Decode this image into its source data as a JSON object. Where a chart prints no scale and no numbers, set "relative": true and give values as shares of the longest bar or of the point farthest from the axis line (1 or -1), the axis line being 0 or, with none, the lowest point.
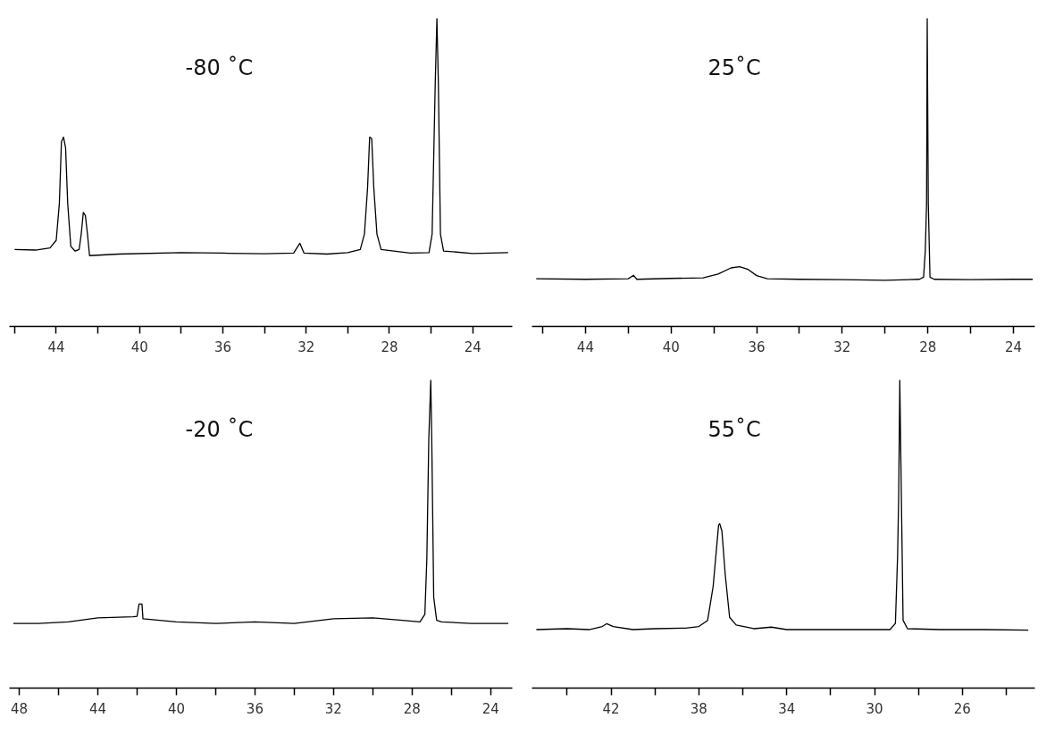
{
  "chart_data": [
    {
      "type": "line",
      "title": "-80 ˚C",
      "relative": true,
      "tick_labels": "x",
      "xlim": [
        46.25,
        22.1
      ],
      "xticks": [
        {
          "value": 46,
          "label": null
        },
        44,
        {
          "value": 42,
          "label": null
        },
        40,
        {
          "value": 38,
          "label": null
        },
        36,
        {
          "value": 34,
          "label": null
        },
        32,
        {
          "value": 30,
          "label": null
        },
        28,
        {
          "value": 26,
          "label": null
        },
        24
      ],
      "series": [
        {
          "color": "#000000",
          "x": [
            46.0,
            45.0,
            44.3,
            44.0,
            43.85,
            43.75,
            43.65,
            43.55,
            43.45,
            43.3,
            43.1,
            42.9,
            42.8,
            42.7,
            42.6,
            42.5,
            42.4,
            41.0,
            38.0,
            36.0,
            34.0,
            32.6,
            32.3,
            32.1,
            31.0,
            30.0,
            29.4,
            29.2,
            29.05,
            28.95,
            28.85,
            28.75,
            28.6,
            28.4,
            27.0,
            26.1,
            25.95,
            25.8,
            25.72,
            25.65,
            25.55,
            25.4,
            24.0,
            22.3
          ],
          "values": [
            0.25,
            0.248,
            0.255,
            0.28,
            0.4,
            0.6,
            0.615,
            0.58,
            0.4,
            0.26,
            0.245,
            0.25,
            0.3,
            0.37,
            0.36,
            0.3,
            0.23,
            0.235,
            0.24,
            0.238,
            0.236,
            0.238,
            0.27,
            0.238,
            0.235,
            0.24,
            0.25,
            0.3,
            0.45,
            0.615,
            0.61,
            0.45,
            0.3,
            0.25,
            0.238,
            0.24,
            0.3,
            0.79,
            1.0,
            0.79,
            0.3,
            0.245,
            0.237,
            0.24
          ]
        }
      ]
    },
    {
      "type": "line",
      "title": "25˚C",
      "relative": true,
      "tick_labels": "x",
      "xlim": [
        46.5,
        23.0
      ],
      "xticks": [
        {
          "value": 46,
          "label": null
        },
        44,
        {
          "value": 42,
          "label": null
        },
        40,
        {
          "value": 38,
          "label": null
        },
        36,
        {
          "value": 34,
          "label": null
        },
        32,
        {
          "value": 30,
          "label": null
        },
        28,
        {
          "value": 26,
          "label": null
        },
        24
      ],
      "series": [
        {
          "color": "#000000",
          "x": [
            46.3,
            44.0,
            42.0,
            41.75,
            41.6,
            40.0,
            38.5,
            37.8,
            37.2,
            36.8,
            36.4,
            36.0,
            35.5,
            34.0,
            32.0,
            30.0,
            28.4,
            28.2,
            28.12,
            28.06,
            28.03,
            27.98,
            27.9,
            27.7,
            26.0,
            24.0,
            23.1
          ],
          "values": [
            0.155,
            0.153,
            0.155,
            0.166,
            0.153,
            0.156,
            0.158,
            0.17,
            0.19,
            0.194,
            0.185,
            0.165,
            0.155,
            0.153,
            0.152,
            0.15,
            0.153,
            0.16,
            0.245,
            0.4,
            1.0,
            0.4,
            0.16,
            0.153,
            0.152,
            0.153,
            0.153
          ]
        }
      ]
    },
    {
      "type": "line",
      "title": "-20 ˚C",
      "relative": true,
      "tick_labels": "x",
      "xlim": [
        48.5,
        22.9
      ],
      "xticks": [
        48,
        {
          "value": 46,
          "label": null
        },
        44,
        {
          "value": 42,
          "label": null
        },
        40,
        {
          "value": 38,
          "label": null
        },
        36,
        {
          "value": 34,
          "label": null
        },
        32,
        {
          "value": 30,
          "label": null
        },
        28,
        {
          "value": 26,
          "label": null
        },
        24
      ],
      "series": [
        {
          "color": "#000000",
          "x": [
            48.3,
            47.0,
            45.5,
            44.0,
            42.2,
            42.0,
            41.9,
            41.75,
            41.7,
            40.0,
            38.0,
            36.0,
            34.0,
            32.0,
            30.0,
            28.5,
            27.6,
            27.35,
            27.25,
            27.15,
            27.05,
            27.0,
            26.9,
            26.75,
            26.5,
            25.0,
            23.1
          ],
          "values": [
            0.21,
            0.21,
            0.215,
            0.228,
            0.232,
            0.233,
            0.273,
            0.273,
            0.225,
            0.215,
            0.21,
            0.215,
            0.21,
            0.225,
            0.228,
            0.22,
            0.215,
            0.24,
            0.42,
            0.81,
            1.0,
            0.81,
            0.295,
            0.22,
            0.215,
            0.21,
            0.21
          ]
        }
      ]
    },
    {
      "type": "line",
      "title": "55˚C",
      "relative": true,
      "tick_labels": "x",
      "xlim": [
        45.6,
        22.7
      ],
      "xticks": [
        {
          "value": 44,
          "label": null
        },
        42,
        {
          "value": 40,
          "label": null
        },
        38,
        {
          "value": 36,
          "label": null
        },
        34,
        {
          "value": 32,
          "label": null
        },
        30,
        {
          "value": 28,
          "label": null
        },
        26,
        {
          "value": 24,
          "label": null
        }
      ],
      "series": [
        {
          "color": "#000000",
          "x": [
            45.4,
            44.0,
            43.0,
            42.4,
            42.2,
            41.9,
            41.0,
            40.0,
            38.6,
            38.0,
            37.6,
            37.35,
            37.2,
            37.1,
            37.05,
            36.95,
            36.8,
            36.6,
            36.3,
            35.5,
            34.7,
            34.0,
            32.0,
            30.0,
            29.3,
            29.05,
            28.95,
            28.9,
            28.85,
            28.78,
            28.7,
            28.5,
            27.0,
            25.0,
            23.0
          ],
          "values": [
            0.19,
            0.193,
            0.19,
            0.2,
            0.209,
            0.2,
            0.19,
            0.193,
            0.195,
            0.2,
            0.22,
            0.33,
            0.45,
            0.53,
            0.534,
            0.51,
            0.37,
            0.23,
            0.205,
            0.193,
            0.198,
            0.19,
            0.19,
            0.19,
            0.19,
            0.21,
            0.43,
            0.63,
            1.0,
            0.63,
            0.22,
            0.193,
            0.19,
            0.19,
            0.188
          ]
        }
      ]
    }
  ]
}
